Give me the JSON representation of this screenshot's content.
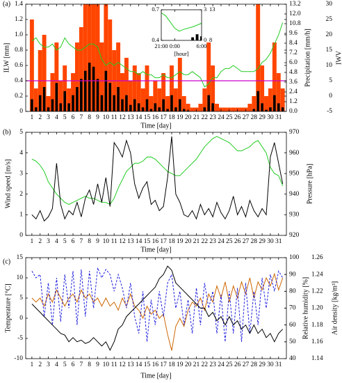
{
  "chart_data": [
    {
      "type": "line",
      "panel_label": "(a)",
      "xlabel": "Time [day]",
      "ylabel": "ILW [mm]",
      "y2label": "Precipitation [mm/h]",
      "y3label": "IWV",
      "axis_colors": {
        "y": "#ff4500",
        "y2": "#000000",
        "y3": "#22bb22"
      },
      "xlim": [
        0.25,
        31.95
      ],
      "xticks": [
        1,
        2,
        3,
        4,
        5,
        6,
        7,
        8,
        9,
        10,
        11,
        12,
        13,
        14,
        15,
        16,
        17,
        18,
        19,
        20,
        21,
        22,
        23,
        24,
        25,
        26,
        27,
        28,
        29,
        30,
        31
      ],
      "ylim": [
        0,
        1.4
      ],
      "yticks": [
        0,
        0.2,
        0.4,
        0.6,
        0.8,
        {
          "value": 1,
          "label": "1.0"
        },
        1.2,
        1.4
      ],
      "y2lim": [
        0,
        13.2
      ],
      "y2ticks": [
        {
          "value": 0,
          "label": "0.0"
        },
        1.2,
        2.4,
        3.6,
        4.8,
        {
          "value": 6,
          "label": "6.0"
        },
        7.2,
        8.4,
        9.6,
        10.8,
        {
          "value": 12,
          "label": "12.0"
        },
        13.2
      ],
      "y3lim": [
        -5,
        30
      ],
      "y3ticks": [
        -5,
        0,
        5,
        10,
        15,
        20,
        25,
        30
      ],
      "hline": {
        "value": 0.4,
        "color": "#cc00cc"
      },
      "x": [
        1,
        1.5,
        2,
        2.5,
        3,
        3.5,
        4,
        4.5,
        5,
        5.5,
        6,
        6.5,
        7,
        7.5,
        8,
        8.5,
        9,
        9.5,
        10,
        10.5,
        11,
        11.5,
        12,
        12.5,
        13,
        13.5,
        14,
        14.5,
        15,
        15.5,
        16,
        16.5,
        17,
        17.5,
        18,
        18.5,
        19,
        19.5,
        20,
        20.5,
        21,
        21.5,
        22,
        22.5,
        23,
        23.5,
        24,
        24.5,
        25,
        25.5,
        26,
        26.5,
        27,
        27.5,
        28,
        28.5,
        29,
        29.5,
        30,
        30.5,
        31,
        31.5
      ],
      "series": [
        {
          "name": "ILW",
          "type": "bar",
          "axis": "y",
          "color": "#ff4500",
          "values": [
            1.2,
            0.3,
            0.8,
            1.0,
            0.2,
            0.5,
            0.9,
            0.4,
            0.6,
            0.3,
            0.5,
            0.9,
            1.1,
            1.4,
            1.4,
            1.4,
            1.4,
            0.9,
            1.4,
            1.2,
            0.8,
            0.9,
            0.5,
            0.7,
            0.4,
            0.6,
            0.5,
            0.3,
            0.6,
            0.2,
            0.4,
            0.3,
            0.5,
            0.2,
            0.6,
            0.3,
            0.7,
            0.2,
            0.1,
            0.05,
            0.05,
            0.1,
            0.3,
            0.9,
            0.6,
            0.1,
            0.05,
            0.05,
            0.05,
            0.05,
            0.05,
            0.05,
            0.05,
            0.1,
            0.2,
            1.4,
            0.6,
            0.2,
            0.3,
            0.9,
            0.5,
            0.3
          ]
        },
        {
          "name": "Precipitation",
          "type": "bar",
          "axis": "y2",
          "color": "#000000",
          "values": [
            1.5,
            0.5,
            2,
            3,
            0.5,
            1.5,
            3.5,
            1,
            2.5,
            1,
            2,
            3,
            4,
            5,
            6,
            5.5,
            4,
            2,
            5,
            3.5,
            2,
            3,
            1.5,
            2,
            0.8,
            1.5,
            1,
            0.5,
            1.5,
            0.3,
            1,
            0.5,
            1.5,
            0.3,
            2,
            0.5,
            1.5,
            0.3,
            0.1,
            0,
            0,
            0,
            0.5,
            2,
            1,
            0,
            0,
            0,
            0,
            0,
            0,
            0,
            0,
            0,
            0.3,
            2.5,
            1,
            0.2,
            0.5,
            2,
            1,
            0.5
          ]
        },
        {
          "name": "IWV",
          "type": "line",
          "axis": "y3",
          "color": "#22cc22",
          "values": [
            18,
            19,
            17,
            16,
            16,
            17,
            15,
            16,
            19,
            17,
            16,
            15,
            15,
            16,
            17,
            17,
            16,
            12,
            10,
            11,
            10,
            11,
            10,
            9,
            8,
            8,
            7,
            8,
            7,
            7,
            6,
            6,
            7,
            6,
            6,
            7,
            8,
            7,
            7,
            8,
            7,
            6,
            3,
            4,
            6,
            6,
            8,
            9,
            9,
            10,
            9,
            8,
            8,
            8,
            8,
            9,
            11,
            12,
            14,
            17,
            20,
            24
          ]
        }
      ]
    },
    {
      "type": "line",
      "xlabel": "[hour]",
      "axis_colors": {
        "y": "#ff4500",
        "y2": "#000000",
        "y3": "#22bb22"
      },
      "xlim": [
        -3,
        6
      ],
      "xticks": [
        {
          "value": -3,
          "label": "21:00"
        },
        {
          "value": 0,
          "label": "0:00"
        },
        {
          "value": 6,
          "label": "6:00"
        }
      ],
      "ylim": [
        0.4,
        0.7
      ],
      "yticks": [
        0.4,
        0.7
      ],
      "y2lim": [
        0,
        3
      ],
      "y2ticks": [
        0,
        3
      ],
      "y3lim": [
        8,
        13
      ],
      "y3ticks": [
        8,
        13
      ],
      "x": [
        -3,
        -2,
        -1,
        0,
        1,
        2,
        3,
        4,
        5,
        6
      ],
      "series": [
        {
          "name": "Precipitation",
          "type": "bar",
          "axis": "y2",
          "color": "#000000",
          "values": [
            0,
            0,
            0,
            0,
            0,
            0,
            0,
            0.3,
            0.6,
            0.4
          ]
        },
        {
          "name": "IWV",
          "type": "line",
          "axis": "y3",
          "color": "#22cc22",
          "values": [
            12.5,
            12,
            11,
            10,
            9.5,
            9.8,
            10,
            10.2,
            10.5,
            10.8
          ]
        }
      ]
    },
    {
      "type": "line",
      "panel_label": "(b)",
      "xlabel": "Time [day]",
      "ylabel": "Wind speed [m/s]",
      "y2label": "Pressure [hPa]",
      "axis_colors": {
        "y": "#000000",
        "y2": "#22bb22"
      },
      "xlim": [
        0.25,
        31.95
      ],
      "xticks": [
        1,
        2,
        3,
        4,
        5,
        6,
        7,
        8,
        9,
        10,
        11,
        12,
        13,
        14,
        15,
        16,
        17,
        18,
        19,
        20,
        21,
        22,
        23,
        24,
        25,
        26,
        27,
        28,
        29,
        30,
        31
      ],
      "ylim": [
        0,
        5
      ],
      "yticks": [
        0,
        1,
        2,
        3,
        4,
        5
      ],
      "y2lim": [
        920,
        970
      ],
      "y2ticks": [
        920,
        930,
        940,
        950,
        960,
        970
      ],
      "x": [
        1,
        1.5,
        2,
        2.5,
        3,
        3.5,
        4,
        4.5,
        5,
        5.5,
        6,
        6.5,
        7,
        7.5,
        8,
        8.5,
        9,
        9.5,
        10,
        10.5,
        11,
        11.5,
        12,
        12.5,
        13,
        13.5,
        14,
        14.5,
        15,
        15.5,
        16,
        16.5,
        17,
        17.5,
        18,
        18.5,
        19,
        19.5,
        20,
        20.5,
        21,
        21.5,
        22,
        22.5,
        23,
        23.5,
        24,
        24.5,
        25,
        25.5,
        26,
        26.5,
        27,
        27.5,
        28,
        28.5,
        29,
        29.5,
        30,
        30.5,
        31,
        31.5
      ],
      "series": [
        {
          "name": "Pressure",
          "type": "line",
          "axis": "y2",
          "color": "#22cc22",
          "values": [
            957,
            956,
            954,
            951,
            946,
            943,
            940,
            938,
            936,
            935,
            936,
            937,
            938,
            939,
            938,
            938,
            937,
            936,
            936,
            935,
            938,
            943,
            947,
            951,
            953,
            955,
            955,
            956,
            958,
            958,
            957,
            955,
            953,
            951,
            950,
            949,
            949,
            951,
            953,
            955,
            957,
            960,
            963,
            965,
            967,
            968,
            967,
            966,
            965,
            963,
            961,
            961,
            962,
            963,
            965,
            966,
            963,
            960,
            953,
            950,
            949,
            944
          ]
        },
        {
          "name": "Wind speed",
          "type": "line",
          "axis": "y",
          "color": "#000000",
          "values": [
            1,
            0.8,
            1.2,
            0.7,
            0.9,
            1.3,
            3.5,
            1.5,
            0.8,
            1.2,
            1,
            1.6,
            0.9,
            1.8,
            2.2,
            1.5,
            2.5,
            1.6,
            2.8,
            1.4,
            4.5,
            4.2,
            3.8,
            4.6,
            4,
            2.5,
            1.8,
            2.3,
            2.6,
            1.5,
            1.7,
            1.2,
            1.4,
            2.8,
            4.8,
            2,
            1.6,
            1,
            0.9,
            1.2,
            0.8,
            1.5,
            1,
            1.3,
            0.9,
            1.6,
            1.1,
            0.8,
            1.2,
            1.9,
            1,
            1.4,
            0.9,
            1.7,
            1.2,
            0.9,
            1.3,
            1,
            3.8,
            4.5,
            3.5,
            2.5
          ]
        }
      ]
    },
    {
      "type": "line",
      "panel_label": "(c)",
      "xlabel": "Time [day]",
      "ylabel": "Temperature [°C]",
      "y2label": "Relative humidity [%]",
      "y3label": "Air density [kg/m³]",
      "axis_colors": {
        "y": "#cc6600",
        "y2": "#1f1fdd",
        "y3": "#000000"
      },
      "xlim": [
        0.25,
        31.95
      ],
      "xticks": [
        1,
        2,
        3,
        4,
        5,
        6,
        7,
        8,
        9,
        10,
        11,
        12,
        13,
        14,
        15,
        16,
        17,
        18,
        19,
        20,
        21,
        22,
        23,
        24,
        25,
        26,
        27,
        28,
        29,
        30,
        31
      ],
      "ylim": [
        -10,
        15
      ],
      "yticks": [
        -10,
        -5,
        0,
        5,
        10,
        15
      ],
      "y2lim": [
        40,
        100
      ],
      "y2ticks": [
        40,
        50,
        60,
        70,
        80,
        90,
        100
      ],
      "y3lim": [
        1.14,
        1.26
      ],
      "y3ticks": [
        1.14,
        1.16,
        1.18,
        {
          "value": 1.2,
          "label": "1.20"
        },
        1.22,
        1.24,
        1.26
      ],
      "x": [
        1,
        1.5,
        2,
        2.5,
        3,
        3.5,
        4,
        4.5,
        5,
        5.5,
        6,
        6.5,
        7,
        7.5,
        8,
        8.5,
        9,
        9.5,
        10,
        10.5,
        11,
        11.5,
        12,
        12.5,
        13,
        13.5,
        14,
        14.5,
        15,
        15.5,
        16,
        16.5,
        17,
        17.5,
        18,
        18.5,
        19,
        19.5,
        20,
        20.5,
        21,
        21.5,
        22,
        22.5,
        23,
        23.5,
        24,
        24.5,
        25,
        25.5,
        26,
        26.5,
        27,
        27.5,
        28,
        28.5,
        29,
        29.5,
        30,
        30.5,
        31,
        31.5
      ],
      "series": [
        {
          "name": "Temperature",
          "type": "line",
          "axis": "y",
          "color": "#cc6600",
          "values": [
            5,
            4,
            5,
            3,
            6,
            4,
            7,
            5,
            3,
            5,
            6,
            4,
            7,
            5,
            6,
            4,
            5,
            3,
            5,
            3,
            4,
            2,
            5,
            3,
            6,
            3,
            2,
            0,
            3,
            1,
            2,
            0,
            1,
            -4,
            -8,
            -2,
            0,
            -2,
            2,
            4,
            3,
            5,
            2,
            6,
            4,
            8,
            5,
            9,
            4,
            8,
            5,
            9,
            6,
            10,
            5,
            9,
            7,
            10,
            8,
            11,
            7,
            10
          ]
        },
        {
          "name": "Relative humidity",
          "type": "line",
          "axis": "y2",
          "color": "#1f1fdd",
          "dashed": true,
          "values": [
            92,
            88,
            90,
            65,
            85,
            60,
            88,
            62,
            90,
            70,
            92,
            60,
            93,
            65,
            92,
            70,
            94,
            88,
            93,
            90,
            80,
            90,
            82,
            70,
            85,
            65,
            55,
            80,
            50,
            75,
            60,
            80,
            65,
            85,
            90,
            70,
            80,
            60,
            75,
            55,
            82,
            60,
            85,
            70,
            80,
            55,
            78,
            50,
            80,
            55,
            82,
            50,
            85,
            55,
            80,
            60,
            88,
            70,
            90,
            80,
            92,
            88
          ]
        },
        {
          "name": "Air density",
          "type": "line",
          "axis": "y3",
          "color": "#000000",
          "values": [
            1.205,
            1.2,
            1.195,
            1.19,
            1.185,
            1.18,
            1.175,
            1.17,
            1.168,
            1.16,
            1.165,
            1.16,
            1.162,
            1.158,
            1.16,
            1.165,
            1.16,
            1.155,
            1.16,
            1.15,
            1.16,
            1.175,
            1.18,
            1.19,
            1.195,
            1.2,
            1.205,
            1.21,
            1.215,
            1.22,
            1.225,
            1.235,
            1.24,
            1.25,
            1.245,
            1.23,
            1.225,
            1.22,
            1.215,
            1.21,
            1.205,
            1.2,
            1.2,
            1.19,
            1.195,
            1.185,
            1.19,
            1.18,
            1.19,
            1.18,
            1.185,
            1.175,
            1.18,
            1.17,
            1.18,
            1.17,
            1.175,
            1.165,
            1.17,
            1.16,
            1.17,
            1.175
          ]
        }
      ]
    }
  ]
}
